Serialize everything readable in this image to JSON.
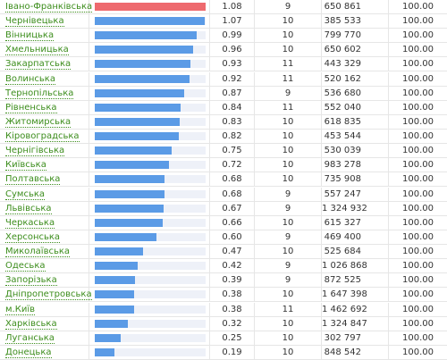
{
  "bar_color": "#5b9be6",
  "highlight_color": "#ee6a6e",
  "highlight_index": 0,
  "rows": [
    [
      "Івано-Франківська",
      "1.08",
      "9",
      "650 861",
      "100.00"
    ],
    [
      "Чернівецька",
      "1.07",
      "10",
      "385 533",
      "100.00"
    ],
    [
      "Вінницька",
      "0.99",
      "10",
      "799 770",
      "100.00"
    ],
    [
      "Хмельницька",
      "0.96",
      "10",
      "650 602",
      "100.00"
    ],
    [
      "Закарпатська",
      "0.93",
      "11",
      "443 329",
      "100.00"
    ],
    [
      "Волинська",
      "0.92",
      "11",
      "520 162",
      "100.00"
    ],
    [
      "Тернопільська",
      "0.87",
      "9",
      "536 680",
      "100.00"
    ],
    [
      "Рівненська",
      "0.84",
      "11",
      "552 040",
      "100.00"
    ],
    [
      "Житомирська",
      "0.83",
      "10",
      "618 835",
      "100.00"
    ],
    [
      "Кіровоградська",
      "0.82",
      "10",
      "453 544",
      "100.00"
    ],
    [
      "Чернігівська",
      "0.75",
      "10",
      "530 039",
      "100.00"
    ],
    [
      "Київська",
      "0.72",
      "10",
      "983 278",
      "100.00"
    ],
    [
      "Полтавська",
      "0.68",
      "10",
      "735 908",
      "100.00"
    ],
    [
      "Сумська",
      "0.68",
      "9",
      "557 247",
      "100.00"
    ],
    [
      "Львівська",
      "0.67",
      "9",
      "1 324 932",
      "100.00"
    ],
    [
      "Черкаська",
      "0.66",
      "10",
      "615 327",
      "100.00"
    ],
    [
      "Херсонська",
      "0.60",
      "9",
      "469 400",
      "100.00"
    ],
    [
      "Миколаївська",
      "0.47",
      "10",
      "525 684",
      "100.00"
    ],
    [
      "Одеська",
      "0.42",
      "9",
      "1 026 868",
      "100.00"
    ],
    [
      "Запорізька",
      "0.39",
      "9",
      "872 525",
      "100.00"
    ],
    [
      "Дніпропетровська",
      "0.38",
      "10",
      "1 647 398",
      "100.00"
    ],
    [
      "м.Київ",
      "0.38",
      "11",
      "1 462 692",
      "100.00"
    ],
    [
      "Харківська",
      "0.32",
      "10",
      "1 324 847",
      "100.00"
    ],
    [
      "Луганська",
      "0.25",
      "10",
      "302 797",
      "100.00"
    ],
    [
      "Донецька",
      "0.19",
      "10",
      "848 542",
      "100.00"
    ]
  ]
}
